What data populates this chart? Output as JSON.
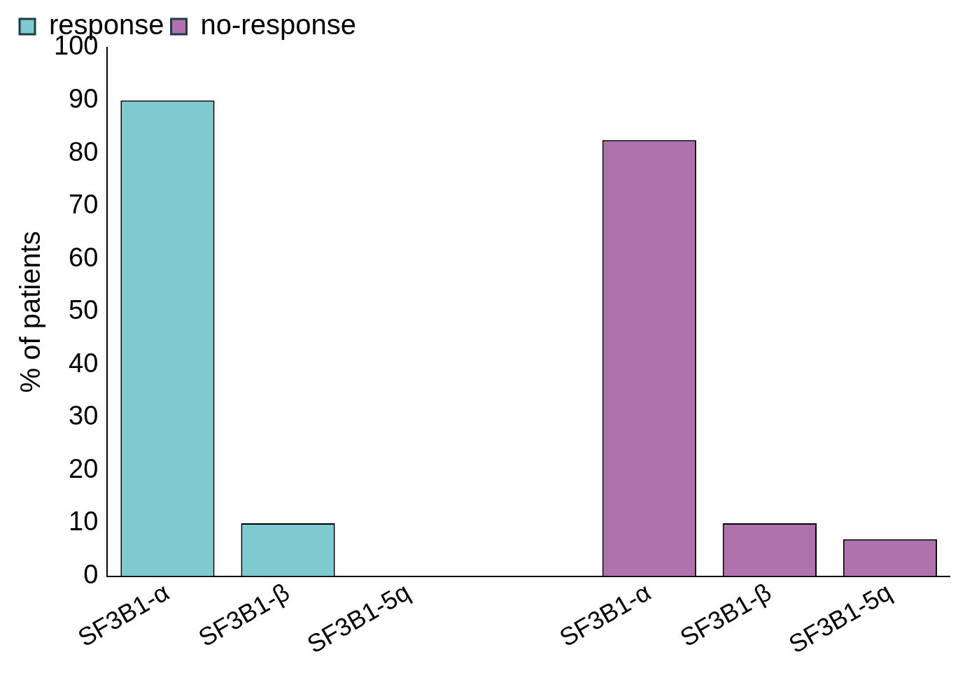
{
  "chart_data": {
    "type": "bar",
    "ylabel": "% of patients",
    "categories": [
      "SF3B1-α",
      "SF3B1-β",
      "SF3B1-5q",
      null,
      "SF3B1-α",
      "SF3B1-β",
      "SF3B1-5q"
    ],
    "series": [
      {
        "name": "response",
        "color": "#7fcad0",
        "values": [
          90,
          10,
          0,
          null,
          null,
          null,
          null
        ]
      },
      {
        "name": "no-response",
        "color": "#b072ad",
        "values": [
          null,
          null,
          null,
          null,
          82.5,
          10,
          7
        ]
      }
    ],
    "ylim": [
      0,
      100
    ],
    "yticks": [
      0,
      10,
      20,
      30,
      40,
      50,
      60,
      70,
      80,
      90,
      100
    ],
    "legend": "top"
  }
}
